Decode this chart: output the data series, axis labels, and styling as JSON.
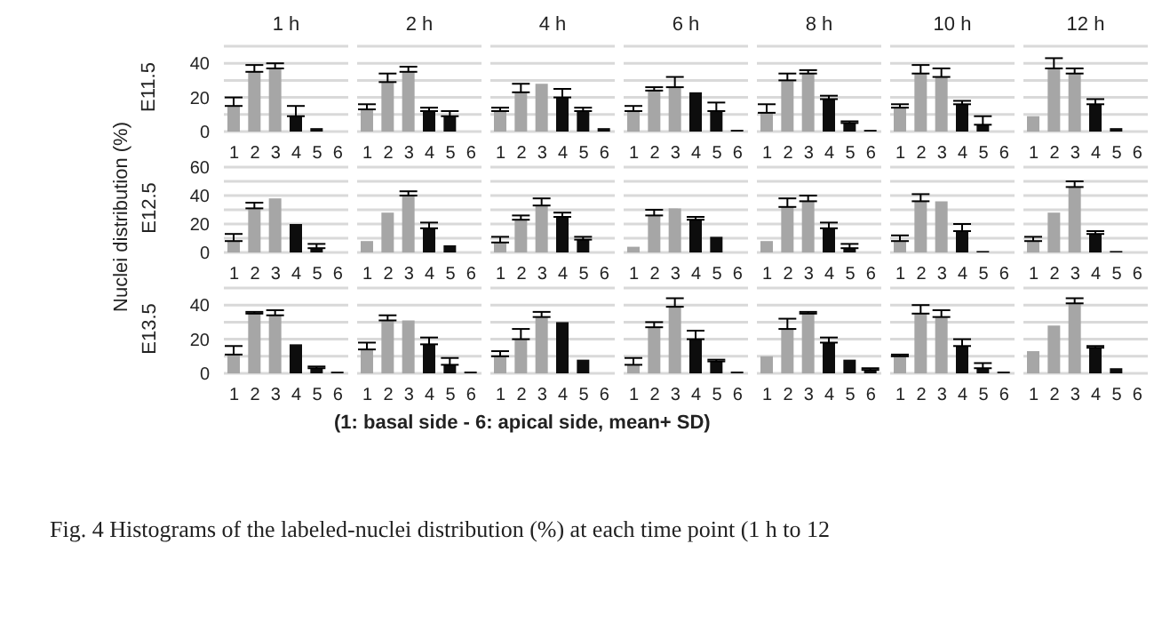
{
  "chart_data": [
    {
      "type": "bar",
      "title": "1 h",
      "ylabel": "E11.5",
      "categories": [
        "1",
        "2",
        "3",
        "4",
        "5",
        "6"
      ],
      "values": [
        15,
        35,
        37,
        9,
        2,
        0
      ],
      "errors": [
        [
          15,
          20
        ],
        [
          35,
          39
        ],
        [
          37,
          40
        ],
        [
          9,
          15
        ],
        null,
        null
      ],
      "colors": [
        "#a6a6a6",
        "#a6a6a6",
        "#a6a6a6",
        "#0d0d0d",
        "#0d0d0d",
        "#0d0d0d"
      ],
      "ylim": [
        0,
        50
      ],
      "yticks": [
        0,
        {
          "value": 10,
          "label": null
        },
        20,
        {
          "value": 30,
          "label": null
        },
        40,
        {
          "value": 50,
          "label": null
        }
      ],
      "grid": "y",
      "legend": false,
      "annotations": [
        "Nuclei distribution (%)",
        "(1: basal side - 6: apical side, mean+ SD)",
        "Fig. 4 Histograms of the labeled-nuclei distribution (%) at each time point (1 h to 12"
      ]
    },
    {
      "type": "bar",
      "title": "2 h",
      "categories": [
        "1",
        "2",
        "3",
        "4",
        "5",
        "6"
      ],
      "values": [
        13,
        29,
        35,
        12,
        9,
        0
      ],
      "errors": [
        [
          13,
          16
        ],
        [
          29,
          34
        ],
        [
          35,
          38
        ],
        [
          12,
          14
        ],
        [
          9,
          12
        ],
        null
      ],
      "colors": [
        "#a6a6a6",
        "#a6a6a6",
        "#a6a6a6",
        "#0d0d0d",
        "#0d0d0d",
        "#0d0d0d"
      ],
      "ylim": [
        0,
        50
      ],
      "yticks": [
        0,
        {
          "value": 10,
          "label": null
        },
        20,
        {
          "value": 30,
          "label": null
        },
        40,
        {
          "value": 50,
          "label": null
        }
      ],
      "grid": "y",
      "legend": false,
      "tick_labels": "x"
    },
    {
      "type": "bar",
      "title": "4 h",
      "categories": [
        "1",
        "2",
        "3",
        "4",
        "5",
        "6"
      ],
      "values": [
        12,
        23,
        28,
        20,
        12,
        2
      ],
      "errors": [
        [
          12,
          14
        ],
        [
          23,
          28
        ],
        null,
        [
          20,
          25
        ],
        [
          12,
          14
        ],
        null
      ],
      "colors": [
        "#a6a6a6",
        "#a6a6a6",
        "#a6a6a6",
        "#0d0d0d",
        "#0d0d0d",
        "#0d0d0d"
      ],
      "ylim": [
        0,
        50
      ],
      "yticks": [
        0,
        {
          "value": 10,
          "label": null
        },
        20,
        {
          "value": 30,
          "label": null
        },
        40,
        {
          "value": 50,
          "label": null
        }
      ],
      "grid": "y",
      "legend": false,
      "tick_labels": "x"
    },
    {
      "type": "bar",
      "title": "6 h",
      "categories": [
        "1",
        "2",
        "3",
        "4",
        "5",
        "6"
      ],
      "values": [
        12,
        24,
        26,
        23,
        12,
        1
      ],
      "errors": [
        [
          12,
          15
        ],
        [
          24,
          26
        ],
        [
          26,
          32
        ],
        null,
        [
          12,
          17
        ],
        null
      ],
      "colors": [
        "#a6a6a6",
        "#a6a6a6",
        "#a6a6a6",
        "#0d0d0d",
        "#0d0d0d",
        "#0d0d0d"
      ],
      "ylim": [
        0,
        50
      ],
      "yticks": [
        0,
        {
          "value": 10,
          "label": null
        },
        20,
        {
          "value": 30,
          "label": null
        },
        40,
        {
          "value": 50,
          "label": null
        }
      ],
      "grid": "y",
      "legend": false,
      "tick_labels": "x"
    },
    {
      "type": "bar",
      "title": "8 h",
      "categories": [
        "1",
        "2",
        "3",
        "4",
        "5",
        "6"
      ],
      "values": [
        11,
        30,
        34,
        19,
        5,
        1
      ],
      "errors": [
        [
          11,
          16
        ],
        [
          30,
          34
        ],
        [
          34,
          36
        ],
        [
          19,
          21
        ],
        [
          5,
          6
        ],
        null
      ],
      "colors": [
        "#a6a6a6",
        "#a6a6a6",
        "#a6a6a6",
        "#0d0d0d",
        "#0d0d0d",
        "#0d0d0d"
      ],
      "ylim": [
        0,
        50
      ],
      "yticks": [
        0,
        {
          "value": 10,
          "label": null
        },
        20,
        {
          "value": 30,
          "label": null
        },
        40,
        {
          "value": 50,
          "label": null
        }
      ],
      "grid": "y",
      "legend": false,
      "tick_labels": "x"
    },
    {
      "type": "bar",
      "title": "10 h",
      "categories": [
        "1",
        "2",
        "3",
        "4",
        "5",
        "6"
      ],
      "values": [
        14,
        34,
        32,
        16,
        4,
        0
      ],
      "errors": [
        [
          14,
          16
        ],
        [
          34,
          39
        ],
        [
          32,
          37
        ],
        [
          16,
          18
        ],
        [
          4,
          9
        ],
        null
      ],
      "colors": [
        "#a6a6a6",
        "#a6a6a6",
        "#a6a6a6",
        "#0d0d0d",
        "#0d0d0d",
        "#0d0d0d"
      ],
      "ylim": [
        0,
        50
      ],
      "yticks": [
        0,
        {
          "value": 10,
          "label": null
        },
        20,
        {
          "value": 30,
          "label": null
        },
        40,
        {
          "value": 50,
          "label": null
        }
      ],
      "grid": "y",
      "legend": false,
      "tick_labels": "x"
    },
    {
      "type": "bar",
      "title": "12 h",
      "categories": [
        "1",
        "2",
        "3",
        "4",
        "5",
        "6"
      ],
      "values": [
        9,
        37,
        34,
        16,
        2,
        0
      ],
      "errors": [
        null,
        [
          37,
          43
        ],
        [
          34,
          37
        ],
        [
          16,
          19
        ],
        null,
        null
      ],
      "colors": [
        "#a6a6a6",
        "#a6a6a6",
        "#a6a6a6",
        "#0d0d0d",
        "#0d0d0d",
        "#0d0d0d"
      ],
      "ylim": [
        0,
        50
      ],
      "yticks": [
        0,
        {
          "value": 10,
          "label": null
        },
        20,
        {
          "value": 30,
          "label": null
        },
        40,
        {
          "value": 50,
          "label": null
        }
      ],
      "grid": "y",
      "legend": false,
      "tick_labels": "x"
    },
    {
      "type": "bar",
      "ylabel": "E12.5",
      "categories": [
        "1",
        "2",
        "3",
        "4",
        "5",
        "6"
      ],
      "values": [
        8,
        31,
        38,
        20,
        3,
        0
      ],
      "errors": [
        [
          8,
          13
        ],
        [
          31,
          35
        ],
        null,
        null,
        [
          3,
          6
        ],
        null
      ],
      "colors": [
        "#a6a6a6",
        "#a6a6a6",
        "#a6a6a6",
        "#0d0d0d",
        "#0d0d0d",
        "#0d0d0d"
      ],
      "ylim": [
        0,
        60
      ],
      "yticks": [
        0,
        {
          "value": 10,
          "label": null
        },
        20,
        {
          "value": 30,
          "label": null
        },
        40,
        {
          "value": 50,
          "label": null
        },
        60
      ],
      "grid": "y",
      "legend": false
    },
    {
      "type": "bar",
      "categories": [
        "1",
        "2",
        "3",
        "4",
        "5",
        "6"
      ],
      "values": [
        8,
        28,
        40,
        17,
        5,
        0
      ],
      "errors": [
        null,
        null,
        [
          40,
          43
        ],
        [
          17,
          21
        ],
        null,
        null
      ],
      "colors": [
        "#a6a6a6",
        "#a6a6a6",
        "#a6a6a6",
        "#0d0d0d",
        "#0d0d0d",
        "#0d0d0d"
      ],
      "ylim": [
        0,
        60
      ],
      "yticks": [
        0,
        {
          "value": 10,
          "label": null
        },
        20,
        {
          "value": 30,
          "label": null
        },
        40,
        {
          "value": 50,
          "label": null
        },
        60
      ],
      "grid": "y",
      "legend": false,
      "tick_labels": "x"
    },
    {
      "type": "bar",
      "categories": [
        "1",
        "2",
        "3",
        "4",
        "5",
        "6"
      ],
      "values": [
        7,
        23,
        33,
        25,
        9,
        0
      ],
      "errors": [
        [
          7,
          11
        ],
        [
          23,
          26
        ],
        [
          33,
          38
        ],
        [
          25,
          28
        ],
        [
          9,
          11
        ],
        null
      ],
      "colors": [
        "#a6a6a6",
        "#a6a6a6",
        "#a6a6a6",
        "#0d0d0d",
        "#0d0d0d",
        "#0d0d0d"
      ],
      "ylim": [
        0,
        60
      ],
      "yticks": [
        0,
        {
          "value": 10,
          "label": null
        },
        20,
        {
          "value": 30,
          "label": null
        },
        40,
        {
          "value": 50,
          "label": null
        },
        60
      ],
      "grid": "y",
      "legend": false,
      "tick_labels": "x"
    },
    {
      "type": "bar",
      "categories": [
        "1",
        "2",
        "3",
        "4",
        "5",
        "6"
      ],
      "values": [
        4,
        26,
        31,
        23,
        11,
        0
      ],
      "errors": [
        null,
        [
          26,
          30
        ],
        null,
        [
          23,
          25
        ],
        null,
        null
      ],
      "colors": [
        "#a6a6a6",
        "#a6a6a6",
        "#a6a6a6",
        "#0d0d0d",
        "#0d0d0d",
        "#0d0d0d"
      ],
      "ylim": [
        0,
        60
      ],
      "yticks": [
        0,
        {
          "value": 10,
          "label": null
        },
        20,
        {
          "value": 30,
          "label": null
        },
        40,
        {
          "value": 50,
          "label": null
        },
        60
      ],
      "grid": "y",
      "legend": false,
      "tick_labels": "x"
    },
    {
      "type": "bar",
      "categories": [
        "1",
        "2",
        "3",
        "4",
        "5",
        "6"
      ],
      "values": [
        8,
        32,
        36,
        17,
        3,
        0
      ],
      "errors": [
        null,
        [
          32,
          38
        ],
        [
          36,
          40
        ],
        [
          17,
          21
        ],
        [
          3,
          6
        ],
        null
      ],
      "colors": [
        "#a6a6a6",
        "#a6a6a6",
        "#a6a6a6",
        "#0d0d0d",
        "#0d0d0d",
        "#0d0d0d"
      ],
      "ylim": [
        0,
        60
      ],
      "yticks": [
        0,
        {
          "value": 10,
          "label": null
        },
        20,
        {
          "value": 30,
          "label": null
        },
        40,
        {
          "value": 50,
          "label": null
        },
        60
      ],
      "grid": "y",
      "legend": false,
      "tick_labels": "x"
    },
    {
      "type": "bar",
      "categories": [
        "1",
        "2",
        "3",
        "4",
        "5",
        "6"
      ],
      "values": [
        8,
        36,
        36,
        15,
        1,
        0
      ],
      "errors": [
        [
          8,
          12
        ],
        [
          36,
          41
        ],
        null,
        [
          15,
          20
        ],
        null,
        null
      ],
      "colors": [
        "#a6a6a6",
        "#a6a6a6",
        "#a6a6a6",
        "#0d0d0d",
        "#0d0d0d",
        "#0d0d0d"
      ],
      "ylim": [
        0,
        60
      ],
      "yticks": [
        0,
        {
          "value": 10,
          "label": null
        },
        20,
        {
          "value": 30,
          "label": null
        },
        40,
        {
          "value": 50,
          "label": null
        },
        60
      ],
      "grid": "y",
      "legend": false,
      "tick_labels": "x"
    },
    {
      "type": "bar",
      "categories": [
        "1",
        "2",
        "3",
        "4",
        "5",
        "6"
      ],
      "values": [
        8,
        28,
        46,
        13,
        1,
        0
      ],
      "errors": [
        [
          8,
          11
        ],
        null,
        [
          46,
          50
        ],
        [
          13,
          15
        ],
        null,
        null
      ],
      "colors": [
        "#a6a6a6",
        "#a6a6a6",
        "#a6a6a6",
        "#0d0d0d",
        "#0d0d0d",
        "#0d0d0d"
      ],
      "ylim": [
        0,
        60
      ],
      "yticks": [
        0,
        {
          "value": 10,
          "label": null
        },
        20,
        {
          "value": 30,
          "label": null
        },
        40,
        {
          "value": 50,
          "label": null
        },
        60
      ],
      "grid": "y",
      "legend": false,
      "tick_labels": "x"
    },
    {
      "type": "bar",
      "ylabel": "E13.5",
      "categories": [
        "1",
        "2",
        "3",
        "4",
        "5",
        "6"
      ],
      "values": [
        11,
        35,
        34,
        17,
        3,
        1
      ],
      "errors": [
        [
          11,
          16
        ],
        [
          35,
          36
        ],
        [
          34,
          37
        ],
        null,
        [
          3,
          4
        ],
        null
      ],
      "colors": [
        "#a6a6a6",
        "#a6a6a6",
        "#a6a6a6",
        "#0d0d0d",
        "#0d0d0d",
        "#0d0d0d"
      ],
      "ylim": [
        0,
        50
      ],
      "yticks": [
        0,
        {
          "value": 10,
          "label": null
        },
        20,
        {
          "value": 30,
          "label": null
        },
        40,
        {
          "value": 50,
          "label": null
        }
      ],
      "grid": "y",
      "legend": false
    },
    {
      "type": "bar",
      "categories": [
        "1",
        "2",
        "3",
        "4",
        "5",
        "6"
      ],
      "values": [
        14,
        31,
        31,
        17,
        5,
        1
      ],
      "errors": [
        [
          14,
          18
        ],
        [
          31,
          34
        ],
        null,
        [
          17,
          21
        ],
        [
          5,
          9
        ],
        null
      ],
      "colors": [
        "#a6a6a6",
        "#a6a6a6",
        "#a6a6a6",
        "#0d0d0d",
        "#0d0d0d",
        "#0d0d0d"
      ],
      "ylim": [
        0,
        50
      ],
      "yticks": [
        0,
        {
          "value": 10,
          "label": null
        },
        20,
        {
          "value": 30,
          "label": null
        },
        40,
        {
          "value": 50,
          "label": null
        }
      ],
      "grid": "y",
      "legend": false,
      "tick_labels": "x"
    },
    {
      "type": "bar",
      "categories": [
        "1",
        "2",
        "3",
        "4",
        "5",
        "6"
      ],
      "values": [
        10,
        20,
        33,
        30,
        8,
        0
      ],
      "errors": [
        [
          10,
          13
        ],
        [
          20,
          26
        ],
        [
          33,
          36
        ],
        null,
        null,
        null
      ],
      "colors": [
        "#a6a6a6",
        "#a6a6a6",
        "#a6a6a6",
        "#0d0d0d",
        "#0d0d0d",
        "#0d0d0d"
      ],
      "ylim": [
        0,
        50
      ],
      "yticks": [
        0,
        {
          "value": 10,
          "label": null
        },
        20,
        {
          "value": 30,
          "label": null
        },
        40,
        {
          "value": 50,
          "label": null
        }
      ],
      "grid": "y",
      "legend": false,
      "tick_labels": "x"
    },
    {
      "type": "bar",
      "categories": [
        "1",
        "2",
        "3",
        "4",
        "5",
        "6"
      ],
      "values": [
        5,
        27,
        39,
        20,
        7,
        1
      ],
      "errors": [
        [
          5,
          9
        ],
        [
          27,
          30
        ],
        [
          39,
          44
        ],
        [
          20,
          25
        ],
        [
          7,
          8
        ],
        null
      ],
      "colors": [
        "#a6a6a6",
        "#a6a6a6",
        "#a6a6a6",
        "#0d0d0d",
        "#0d0d0d",
        "#0d0d0d"
      ],
      "ylim": [
        0,
        50
      ],
      "yticks": [
        0,
        {
          "value": 10,
          "label": null
        },
        20,
        {
          "value": 30,
          "label": null
        },
        40,
        {
          "value": 50,
          "label": null
        }
      ],
      "grid": "y",
      "legend": false,
      "tick_labels": "x"
    },
    {
      "type": "bar",
      "categories": [
        "1",
        "2",
        "3",
        "4",
        "5",
        "6"
      ],
      "values": [
        10,
        26,
        35,
        18,
        8,
        2
      ],
      "errors": [
        null,
        [
          26,
          32
        ],
        [
          35,
          36
        ],
        [
          18,
          21
        ],
        null,
        [
          2,
          3
        ]
      ],
      "colors": [
        "#a6a6a6",
        "#a6a6a6",
        "#a6a6a6",
        "#0d0d0d",
        "#0d0d0d",
        "#0d0d0d"
      ],
      "ylim": [
        0,
        50
      ],
      "yticks": [
        0,
        {
          "value": 10,
          "label": null
        },
        20,
        {
          "value": 30,
          "label": null
        },
        40,
        {
          "value": 50,
          "label": null
        }
      ],
      "grid": "y",
      "legend": false,
      "tick_labels": "x"
    },
    {
      "type": "bar",
      "categories": [
        "1",
        "2",
        "3",
        "4",
        "5",
        "6"
      ],
      "values": [
        10,
        35,
        33,
        16,
        3,
        1
      ],
      "errors": [
        [
          10,
          11
        ],
        [
          35,
          40
        ],
        [
          33,
          37
        ],
        [
          16,
          20
        ],
        [
          3,
          6
        ],
        null
      ],
      "colors": [
        "#a6a6a6",
        "#a6a6a6",
        "#a6a6a6",
        "#0d0d0d",
        "#0d0d0d",
        "#0d0d0d"
      ],
      "ylim": [
        0,
        50
      ],
      "yticks": [
        0,
        {
          "value": 10,
          "label": null
        },
        20,
        {
          "value": 30,
          "label": null
        },
        40,
        {
          "value": 50,
          "label": null
        }
      ],
      "grid": "y",
      "legend": false,
      "tick_labels": "x"
    },
    {
      "type": "bar",
      "categories": [
        "1",
        "2",
        "3",
        "4",
        "5",
        "6"
      ],
      "values": [
        13,
        28,
        41,
        15,
        3,
        0
      ],
      "errors": [
        null,
        null,
        [
          41,
          44
        ],
        [
          15,
          16
        ],
        null,
        null
      ],
      "colors": [
        "#a6a6a6",
        "#a6a6a6",
        "#a6a6a6",
        "#0d0d0d",
        "#0d0d0d",
        "#0d0d0d"
      ],
      "ylim": [
        0,
        50
      ],
      "yticks": [
        0,
        {
          "value": 10,
          "label": null
        },
        20,
        {
          "value": 30,
          "label": null
        },
        40,
        {
          "value": 50,
          "label": null
        }
      ],
      "grid": "y",
      "legend": false,
      "tick_labels": "x"
    }
  ]
}
